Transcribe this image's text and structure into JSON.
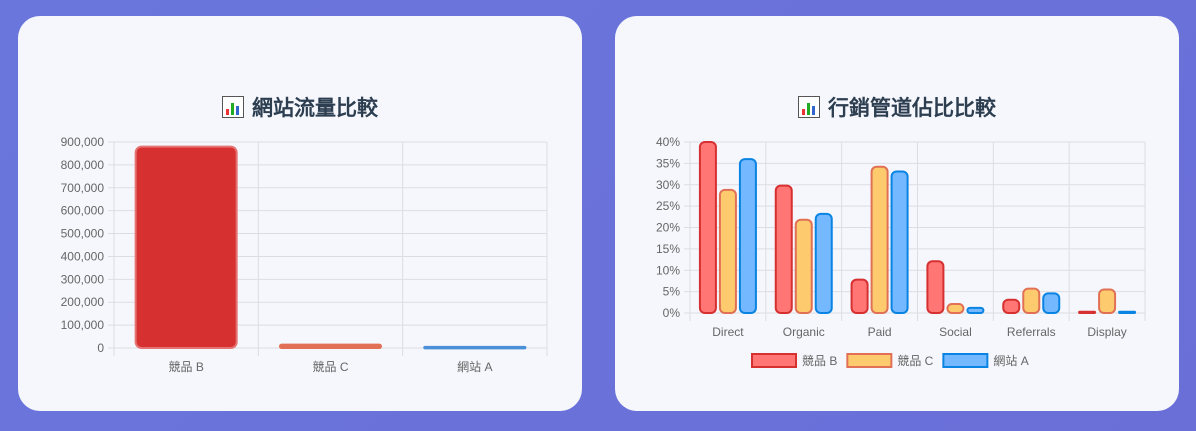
{
  "chart_data": [
    {
      "type": "bar",
      "title": "網站流量比較",
      "categories": [
        "競品 B",
        "競品 C",
        "網站 A"
      ],
      "values": [
        880000,
        15000,
        5000
      ],
      "colors": [
        "#d63031",
        "#e17055",
        "#4a90d9"
      ],
      "ylim": [
        0,
        900000
      ],
      "yticks": [
        0,
        100000,
        200000,
        300000,
        400000,
        500000,
        600000,
        700000,
        800000,
        900000
      ],
      "ytick_labels": [
        "0",
        "100,000",
        "200,000",
        "300,000",
        "400,000",
        "500,000",
        "600,000",
        "700,000",
        "800,000",
        "900,000"
      ],
      "grid": true,
      "legend": "none"
    },
    {
      "type": "bar",
      "title": "行銷管道佔比比較",
      "categories": [
        "Direct",
        "Organic",
        "Paid",
        "Social",
        "Referrals",
        "Display"
      ],
      "series": [
        {
          "name": "競品 B",
          "values": [
            41,
            29.8,
            7.8,
            12.1,
            3.1,
            0.3
          ],
          "fill": "#ff7675",
          "stroke": "#d63031"
        },
        {
          "name": "競品 C",
          "values": [
            28.8,
            21.8,
            34.2,
            2.1,
            5.7,
            5.5
          ],
          "fill": "#fdcb6e",
          "stroke": "#e17055"
        },
        {
          "name": "網站 A",
          "values": [
            36,
            23.2,
            33.1,
            1.2,
            4.6,
            0.3
          ],
          "fill": "#74b9ff",
          "stroke": "#0984e3"
        }
      ],
      "ylim": [
        0,
        40
      ],
      "yticks": [
        0,
        5,
        10,
        15,
        20,
        25,
        30,
        35,
        40
      ],
      "ytick_labels": [
        "0%",
        "5%",
        "10%",
        "15%",
        "20%",
        "25%",
        "30%",
        "35%",
        "40%"
      ],
      "grid": true,
      "legend": "bottom"
    }
  ]
}
